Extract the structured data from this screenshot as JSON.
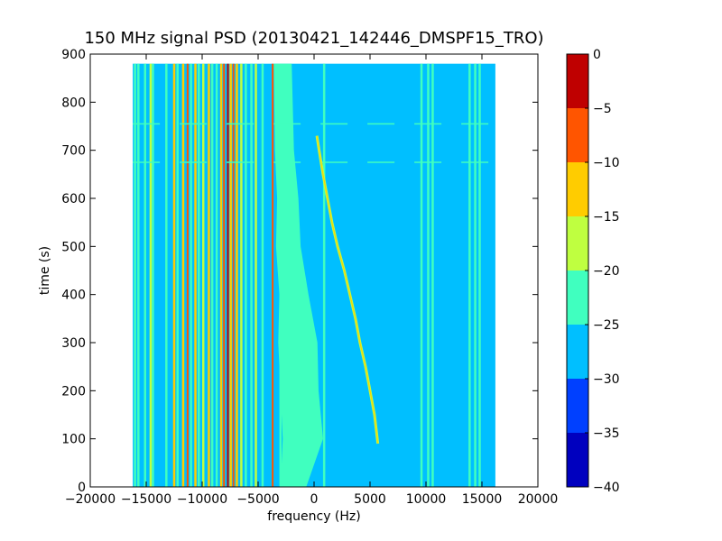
{
  "chart_data": {
    "type": "heatmap",
    "title": "150 MHz signal PSD (20130421_142446_DMSPF15_TRO)",
    "xlabel": "frequency (Hz)",
    "ylabel": "time (s)",
    "xlim": [
      -20000,
      20000
    ],
    "ylim": [
      0,
      900
    ],
    "x_ticks": [
      -20000,
      -15000,
      -10000,
      -5000,
      0,
      5000,
      10000,
      15000,
      20000
    ],
    "x_tick_labels": [
      "−20000",
      "−15000",
      "−10000",
      "−5000",
      "0",
      "5000",
      "10000",
      "15000",
      "20000"
    ],
    "y_ticks": [
      0,
      100,
      200,
      300,
      400,
      500,
      600,
      700,
      800,
      900
    ],
    "y_tick_labels": [
      "0",
      "100",
      "200",
      "300",
      "400",
      "500",
      "600",
      "700",
      "800",
      "900"
    ],
    "data_extent": {
      "x": [
        -16200,
        16200
      ],
      "y": [
        0,
        880
      ]
    },
    "background_level_db": -27.5,
    "colorbar": {
      "levels": [
        -40,
        -35,
        -30,
        -25,
        -20,
        -15,
        -10,
        -5,
        0
      ],
      "tick_labels": [
        "−40",
        "−35",
        "−30",
        "−25",
        "−20",
        "−15",
        "−10",
        "−5",
        "0"
      ],
      "colors": [
        "#0000bf",
        "#0040ff",
        "#00bfff",
        "#40ffbf",
        "#bfff40",
        "#ffcc00",
        "#ff5500",
        "#bf0000"
      ]
    },
    "vertical_lines": [
      {
        "x": -16000,
        "level": -22.5
      },
      {
        "x": -15700,
        "level": -22.5
      },
      {
        "x": -15100,
        "level": -22.5
      },
      {
        "x": -14600,
        "level": -17.5
      },
      {
        "x": -14400,
        "level": -22.5
      },
      {
        "x": -13200,
        "level": -22.5
      },
      {
        "x": -12500,
        "level": -12.5
      },
      {
        "x": -12200,
        "level": -22.5
      },
      {
        "x": -11700,
        "level": -12.5
      },
      {
        "x": -11300,
        "level": -7.5
      },
      {
        "x": -11000,
        "level": -22.5
      },
      {
        "x": -10600,
        "level": -12.5
      },
      {
        "x": -10300,
        "level": -22.5
      },
      {
        "x": -9900,
        "level": -17.5
      },
      {
        "x": -9400,
        "level": -12.5
      },
      {
        "x": -9100,
        "level": -22.5
      },
      {
        "x": -8700,
        "level": -22.5
      },
      {
        "x": -8300,
        "level": -12.5
      },
      {
        "x": -8050,
        "level": -7.5
      },
      {
        "x": -7700,
        "level": -2.5
      },
      {
        "x": -7450,
        "level": -12.5
      },
      {
        "x": -7200,
        "level": -7.5
      },
      {
        "x": -6900,
        "level": -12.5
      },
      {
        "x": -6500,
        "level": -17.5
      },
      {
        "x": -6100,
        "level": -22.5
      },
      {
        "x": -5600,
        "level": -22.5
      },
      {
        "x": -5200,
        "level": -17.5
      },
      {
        "x": -4600,
        "level": -22.5
      },
      {
        "x": -3700,
        "level": -7.5
      },
      {
        "x": -3000,
        "level": -22.5
      },
      {
        "x": 900,
        "level": -22.5
      },
      {
        "x": 9600,
        "level": -22.5
      },
      {
        "x": 10200,
        "level": -22.5
      },
      {
        "x": 10600,
        "level": -22.5
      },
      {
        "x": 13900,
        "level": -22.5
      },
      {
        "x": 14400,
        "level": -22.5
      },
      {
        "x": 14800,
        "level": -22.5
      }
    ],
    "noise_band": {
      "level": -22.5,
      "left_edge": [
        [
          0,
          -3000
        ],
        [
          100,
          -2800
        ],
        [
          200,
          -3000
        ],
        [
          300,
          -3200
        ],
        [
          400,
          -3100
        ],
        [
          500,
          -3400
        ],
        [
          600,
          -3300
        ],
        [
          700,
          -3500
        ],
        [
          880,
          -3600
        ]
      ],
      "right_edge": [
        [
          0,
          -700
        ],
        [
          100,
          800
        ],
        [
          200,
          400
        ],
        [
          300,
          300
        ],
        [
          400,
          -500
        ],
        [
          500,
          -1200
        ],
        [
          600,
          -1400
        ],
        [
          700,
          -1800
        ],
        [
          880,
          -2000
        ]
      ]
    },
    "doppler_trace": {
      "level": -17.5,
      "points": [
        [
          90,
          5700
        ],
        [
          150,
          5400
        ],
        [
          200,
          5000
        ],
        [
          250,
          4600
        ],
        [
          300,
          4100
        ],
        [
          350,
          3700
        ],
        [
          400,
          3200
        ],
        [
          450,
          2700
        ],
        [
          500,
          2100
        ],
        [
          550,
          1600
        ],
        [
          600,
          1200
        ],
        [
          650,
          800
        ],
        [
          700,
          450
        ],
        [
          730,
          250
        ]
      ]
    },
    "horizontal_streaks": [
      {
        "y": 675,
        "level": -22.5
      },
      {
        "y": 755,
        "level": -22.5
      }
    ]
  }
}
